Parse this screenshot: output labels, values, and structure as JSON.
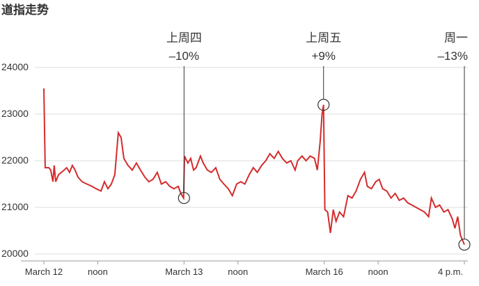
{
  "chart_data": {
    "type": "line",
    "title": "道指走势",
    "color": "#d42b2b",
    "x": [
      0,
      0.06,
      0.23,
      0.32,
      0.42,
      0.48,
      0.55,
      0.68,
      0.81,
      0.94,
      1.06,
      1.19,
      1.32,
      1.45,
      1.58,
      1.77,
      2.0,
      2.23,
      2.42,
      2.65,
      2.81,
      2.97,
      3.13,
      3.29,
      3.45,
      3.58,
      3.71,
      3.9,
      4.1,
      4.29,
      4.48,
      4.68,
      4.87,
      5.06,
      5.26,
      5.45,
      5.65,
      5.84,
      6.03,
      6.23,
      6.35,
      6.48,
      6.52,
      6.68,
      6.81,
      6.94,
      7.06,
      7.26,
      7.39,
      7.58,
      7.77,
      7.97,
      8.16,
      8.35,
      8.55,
      8.74,
      8.94,
      9.13,
      9.32,
      9.52,
      9.71,
      9.9,
      10.1,
      10.29,
      10.48,
      10.68,
      10.87,
      11.06,
      11.26,
      11.45,
      11.65,
      11.77,
      11.97,
      12.16,
      12.35,
      12.55,
      12.68,
      12.81,
      12.9,
      12.97,
      13.03,
      13.16,
      13.29,
      13.42,
      13.55,
      13.71,
      13.9,
      14.1,
      14.29,
      14.48,
      14.68,
      14.87,
      15.0,
      15.19,
      15.39,
      15.55,
      15.71,
      15.9,
      16.1,
      16.29,
      16.48,
      16.68,
      16.87,
      17.06,
      17.26,
      17.45,
      17.65,
      17.84,
      17.97,
      18.16,
      18.35,
      18.55,
      18.74,
      18.94,
      19.06,
      19.19,
      19.32,
      19.5
    ],
    "values": [
      23550,
      21850,
      21850,
      21800,
      21550,
      21900,
      21550,
      21700,
      21750,
      21800,
      21850,
      21750,
      21900,
      21800,
      21650,
      21550,
      21500,
      21450,
      21400,
      21350,
      21550,
      21400,
      21500,
      21700,
      22600,
      22500,
      22050,
      21900,
      21800,
      21950,
      21800,
      21650,
      21550,
      21600,
      21750,
      21500,
      21550,
      21450,
      21400,
      21450,
      21300,
      21200,
      22100,
      21950,
      22050,
      21800,
      21850,
      22100,
      21950,
      21800,
      21750,
      21850,
      21600,
      21500,
      21400,
      21250,
      21500,
      21550,
      21500,
      21700,
      21850,
      21750,
      21900,
      22000,
      22150,
      22050,
      22200,
      22050,
      21950,
      22000,
      21800,
      22000,
      22100,
      22000,
      22100,
      22050,
      21800,
      22400,
      23000,
      23200,
      20950,
      20900,
      20450,
      20950,
      20700,
      20900,
      20800,
      21250,
      21200,
      21350,
      21600,
      21750,
      21450,
      21400,
      21550,
      21600,
      21400,
      21350,
      21200,
      21300,
      21150,
      21200,
      21100,
      21050,
      21000,
      20950,
      20900,
      20800,
      21200,
      21000,
      21050,
      20900,
      20950,
      20750,
      20550,
      20800,
      20400,
      20200
    ],
    "xlim": [
      0,
      19.5
    ],
    "xticks": [
      {
        "value": 0,
        "label": "March 12"
      },
      {
        "value": 2.5,
        "label": "noon"
      },
      {
        "value": 6.5,
        "label": "March 13"
      },
      {
        "value": 9,
        "label": "noon"
      },
      {
        "value": 13,
        "label": "March 16"
      },
      {
        "value": 15.5,
        "label": "noon"
      },
      {
        "value": 19.5,
        "label": "4 p.m."
      }
    ],
    "ylim": [
      19850,
      24000
    ],
    "yticks": [
      20000,
      21000,
      22000,
      23000,
      24000
    ],
    "grid": true,
    "annotations": [
      {
        "x": 6.5,
        "y": 21200,
        "label": "上周四",
        "change": "–10%"
      },
      {
        "x": 12.97,
        "y": 23200,
        "label": "上周五",
        "change": "+9%"
      },
      {
        "x": 19.5,
        "y": 20200,
        "label": "周一",
        "change": "–13%"
      }
    ]
  }
}
